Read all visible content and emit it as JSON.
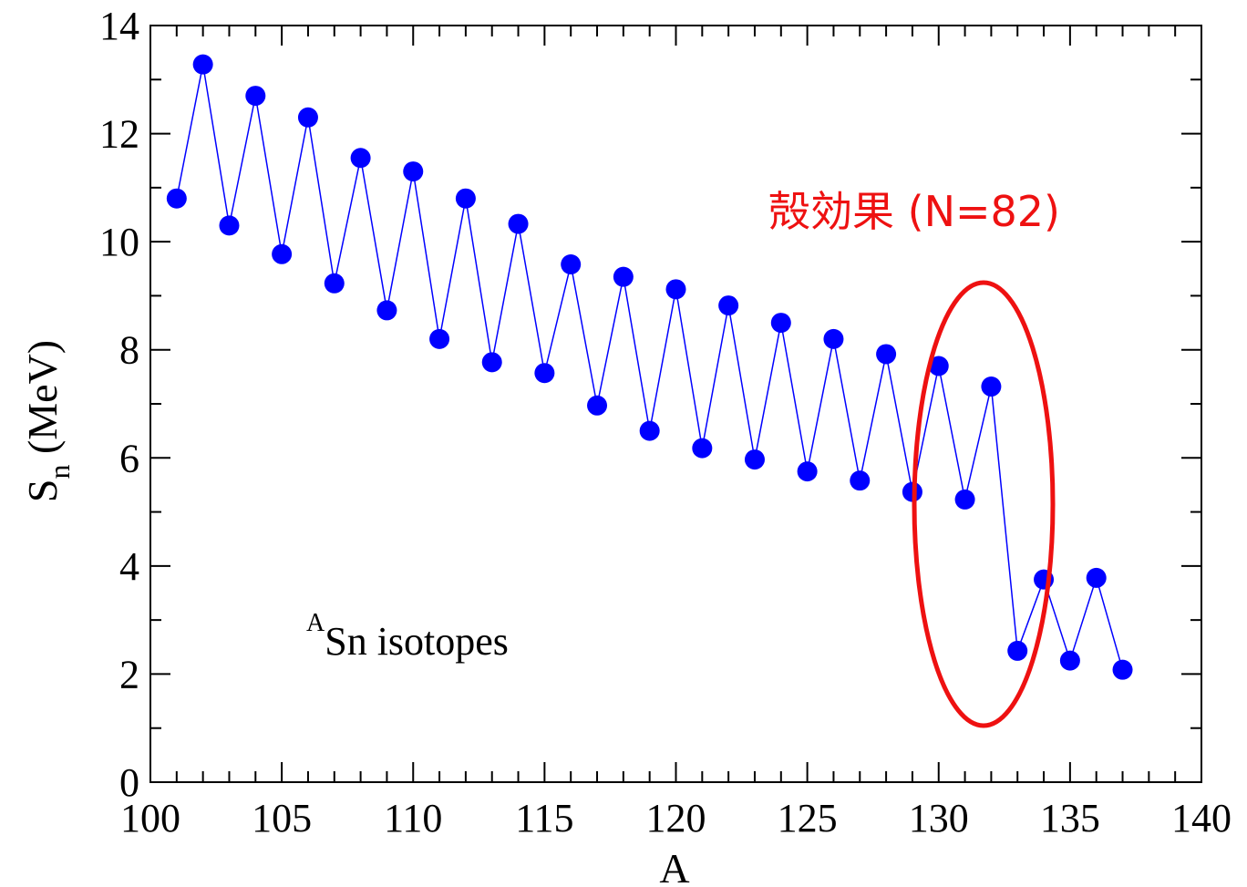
{
  "chart_data": {
    "type": "scatter",
    "title": "",
    "xlabel": "A",
    "ylabel": {
      "main": "S",
      "sub": "n",
      "unit": "(MeV)"
    },
    "xlim": [
      100,
      140
    ],
    "ylim": [
      0,
      14
    ],
    "xticks": [
      100,
      105,
      110,
      115,
      120,
      125,
      130,
      135,
      140
    ],
    "yticks": [
      0,
      2,
      4,
      6,
      8,
      10,
      12,
      14
    ],
    "xtick_labels": [
      "100",
      "105",
      "110",
      "115",
      "120",
      "125",
      "130",
      "135",
      "140"
    ],
    "ytick_labels": [
      "0",
      "2",
      "4",
      "6",
      "8",
      "10",
      "12",
      "14"
    ],
    "grid": false,
    "series": [
      {
        "color": "#0000ff",
        "connected": true,
        "x": [
          101,
          102,
          103,
          104,
          105,
          106,
          107,
          108,
          109,
          110,
          111,
          112,
          113,
          114,
          115,
          116,
          117,
          118,
          119,
          120,
          121,
          122,
          123,
          124,
          125,
          126,
          127,
          128,
          129,
          130,
          131,
          132,
          133,
          134,
          135,
          136,
          137
        ],
        "y": [
          10.8,
          13.28,
          10.3,
          12.7,
          9.77,
          12.3,
          9.23,
          11.55,
          8.73,
          11.3,
          8.2,
          10.8,
          7.77,
          10.33,
          7.57,
          9.58,
          6.97,
          9.35,
          6.5,
          9.12,
          6.18,
          8.82,
          5.97,
          8.5,
          5.75,
          8.2,
          5.58,
          7.92,
          5.37,
          7.7,
          5.23,
          7.32,
          2.43,
          3.75,
          2.25,
          3.78,
          2.08
        ]
      }
    ],
    "annotations": {
      "isotope_label": {
        "superscript": "A",
        "text": "Sn isotopes"
      },
      "shell_effect": {
        "text": "殻効果 (N=82)",
        "color": "#ee1111"
      }
    }
  }
}
